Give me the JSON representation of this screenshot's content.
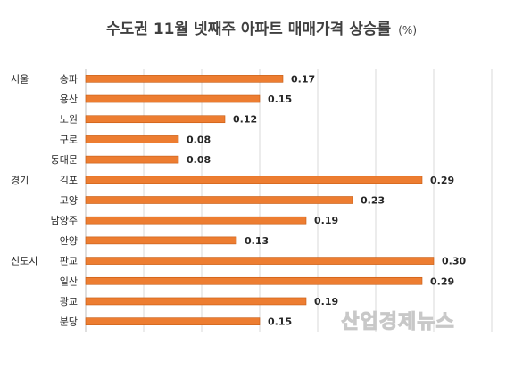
{
  "chart_data": {
    "type": "bar",
    "orientation": "horizontal",
    "title": "수도권 11월 넷째주 아파트 매매가격 상승률",
    "title_unit": "(%)",
    "groups": [
      {
        "label": "서울",
        "start_index": 0
      },
      {
        "label": "경기",
        "start_index": 5
      },
      {
        "label": "신도시",
        "start_index": 9
      }
    ],
    "categories": [
      "송파",
      "용산",
      "노원",
      "구로",
      "동대문",
      "김포",
      "고양",
      "남양주",
      "안양",
      "판교",
      "일산",
      "광교",
      "분당"
    ],
    "values": [
      0.17,
      0.15,
      0.12,
      0.08,
      0.08,
      0.29,
      0.23,
      0.19,
      0.13,
      0.3,
      0.29,
      0.19,
      0.15
    ],
    "value_labels": [
      "0.17",
      "0.15",
      "0.12",
      "0.08",
      "0.08",
      "0.29",
      "0.23",
      "0.19",
      "0.13",
      "0.30",
      "0.29",
      "0.19",
      "0.15"
    ],
    "xlim": [
      0,
      0.35
    ],
    "grid": true,
    "bar_color": "#ED7D31",
    "bar_edge_color": "#C55A11",
    "gridline_color": "#D9D9D9"
  },
  "watermark": "산업경제뉴스"
}
